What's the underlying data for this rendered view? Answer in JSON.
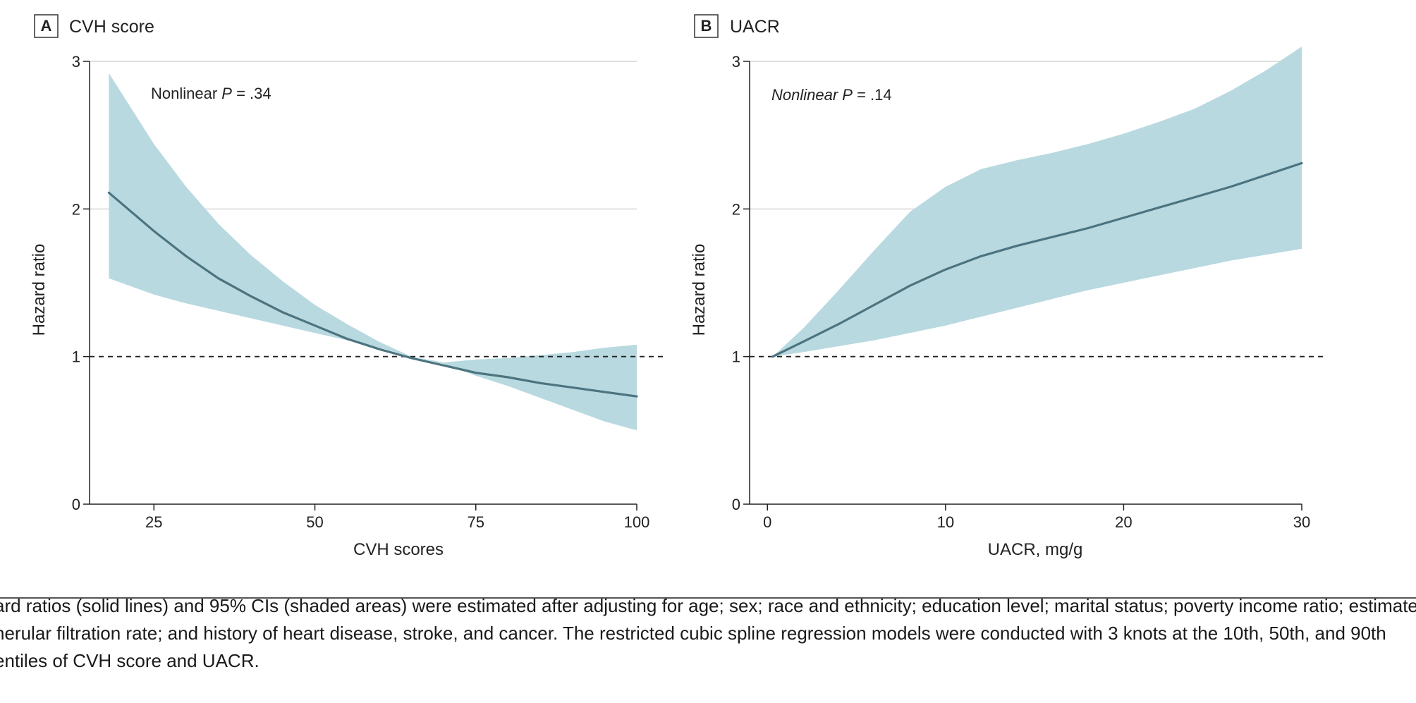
{
  "chart_data": [
    {
      "panel_letter": "A",
      "panel_title": "CVH score",
      "type": "line",
      "xlabel": "CVH scores",
      "ylabel": "Hazard ratio",
      "xlim": [
        15,
        100
      ],
      "ylim": [
        0,
        3
      ],
      "x_ticks": [
        25,
        50,
        75,
        100
      ],
      "y_ticks": [
        0,
        1,
        2,
        3
      ],
      "reference_line": 1,
      "annotation": {
        "prefix": "Nonlinear ",
        "p": "P",
        "suffix": " = .34"
      },
      "series": [
        {
          "x": [
            18,
            25,
            30,
            35,
            40,
            45,
            50,
            55,
            60,
            65,
            70,
            75,
            80,
            85,
            90,
            95,
            100
          ],
          "y": [
            2.11,
            1.85,
            1.68,
            1.53,
            1.41,
            1.3,
            1.21,
            1.12,
            1.05,
            0.99,
            0.94,
            0.89,
            0.86,
            0.82,
            0.79,
            0.76,
            0.73
          ]
        }
      ],
      "ci_lower": [
        1.53,
        1.42,
        1.36,
        1.31,
        1.26,
        1.21,
        1.16,
        1.11,
        1.06,
        1.0,
        0.95,
        0.87,
        0.8,
        0.72,
        0.64,
        0.56,
        0.5
      ],
      "ci_upper": [
        2.92,
        2.44,
        2.15,
        1.9,
        1.69,
        1.51,
        1.35,
        1.22,
        1.1,
        1.0,
        0.96,
        0.98,
        0.99,
        1.01,
        1.03,
        1.06,
        1.08
      ],
      "colors": {
        "line": "#4c7480",
        "band": "#b8d9e0"
      }
    },
    {
      "panel_letter": "B",
      "panel_title": "UACR",
      "type": "line",
      "xlabel": "UACR, mg/g",
      "ylabel": "Hazard ratio",
      "xlim": [
        -1,
        30
      ],
      "ylim": [
        0,
        3
      ],
      "x_ticks": [
        0,
        10,
        20,
        30
      ],
      "y_ticks": [
        0,
        1,
        2,
        3
      ],
      "reference_line": 1,
      "annotation": {
        "prefix": "Nonlinear ",
        "p": "P",
        "suffix": " = .14"
      },
      "series": [
        {
          "x": [
            0.3,
            2,
            4,
            6,
            8,
            10,
            12,
            14,
            16,
            18,
            20,
            22,
            24,
            26,
            28,
            30
          ],
          "y": [
            1.0,
            1.1,
            1.22,
            1.35,
            1.48,
            1.59,
            1.68,
            1.75,
            1.81,
            1.87,
            1.94,
            2.01,
            2.08,
            2.15,
            2.23,
            2.31
          ]
        }
      ],
      "ci_lower": [
        1.0,
        1.03,
        1.07,
        1.11,
        1.16,
        1.21,
        1.27,
        1.33,
        1.39,
        1.45,
        1.5,
        1.55,
        1.6,
        1.65,
        1.69,
        1.73
      ],
      "ci_upper": [
        1.0,
        1.19,
        1.45,
        1.72,
        1.98,
        2.15,
        2.27,
        2.33,
        2.38,
        2.44,
        2.51,
        2.59,
        2.68,
        2.8,
        2.94,
        3.1
      ],
      "colors": {
        "line": "#4c7480",
        "band": "#b8d9e0"
      }
    }
  ],
  "caption_lines": [
    "ard ratios (solid lines) and 95% CIs (shaded areas) were estimated after adjusting for age; sex; race and ethnicity; education level; marital status; poverty income ratio; estimated",
    "nerular filtration rate; and history of heart disease, stroke, and cancer. The restricted cubic spline regression models were conducted with 3 knots at the 10th, 50th, and 90th",
    "entiles of CVH score and UACR."
  ]
}
